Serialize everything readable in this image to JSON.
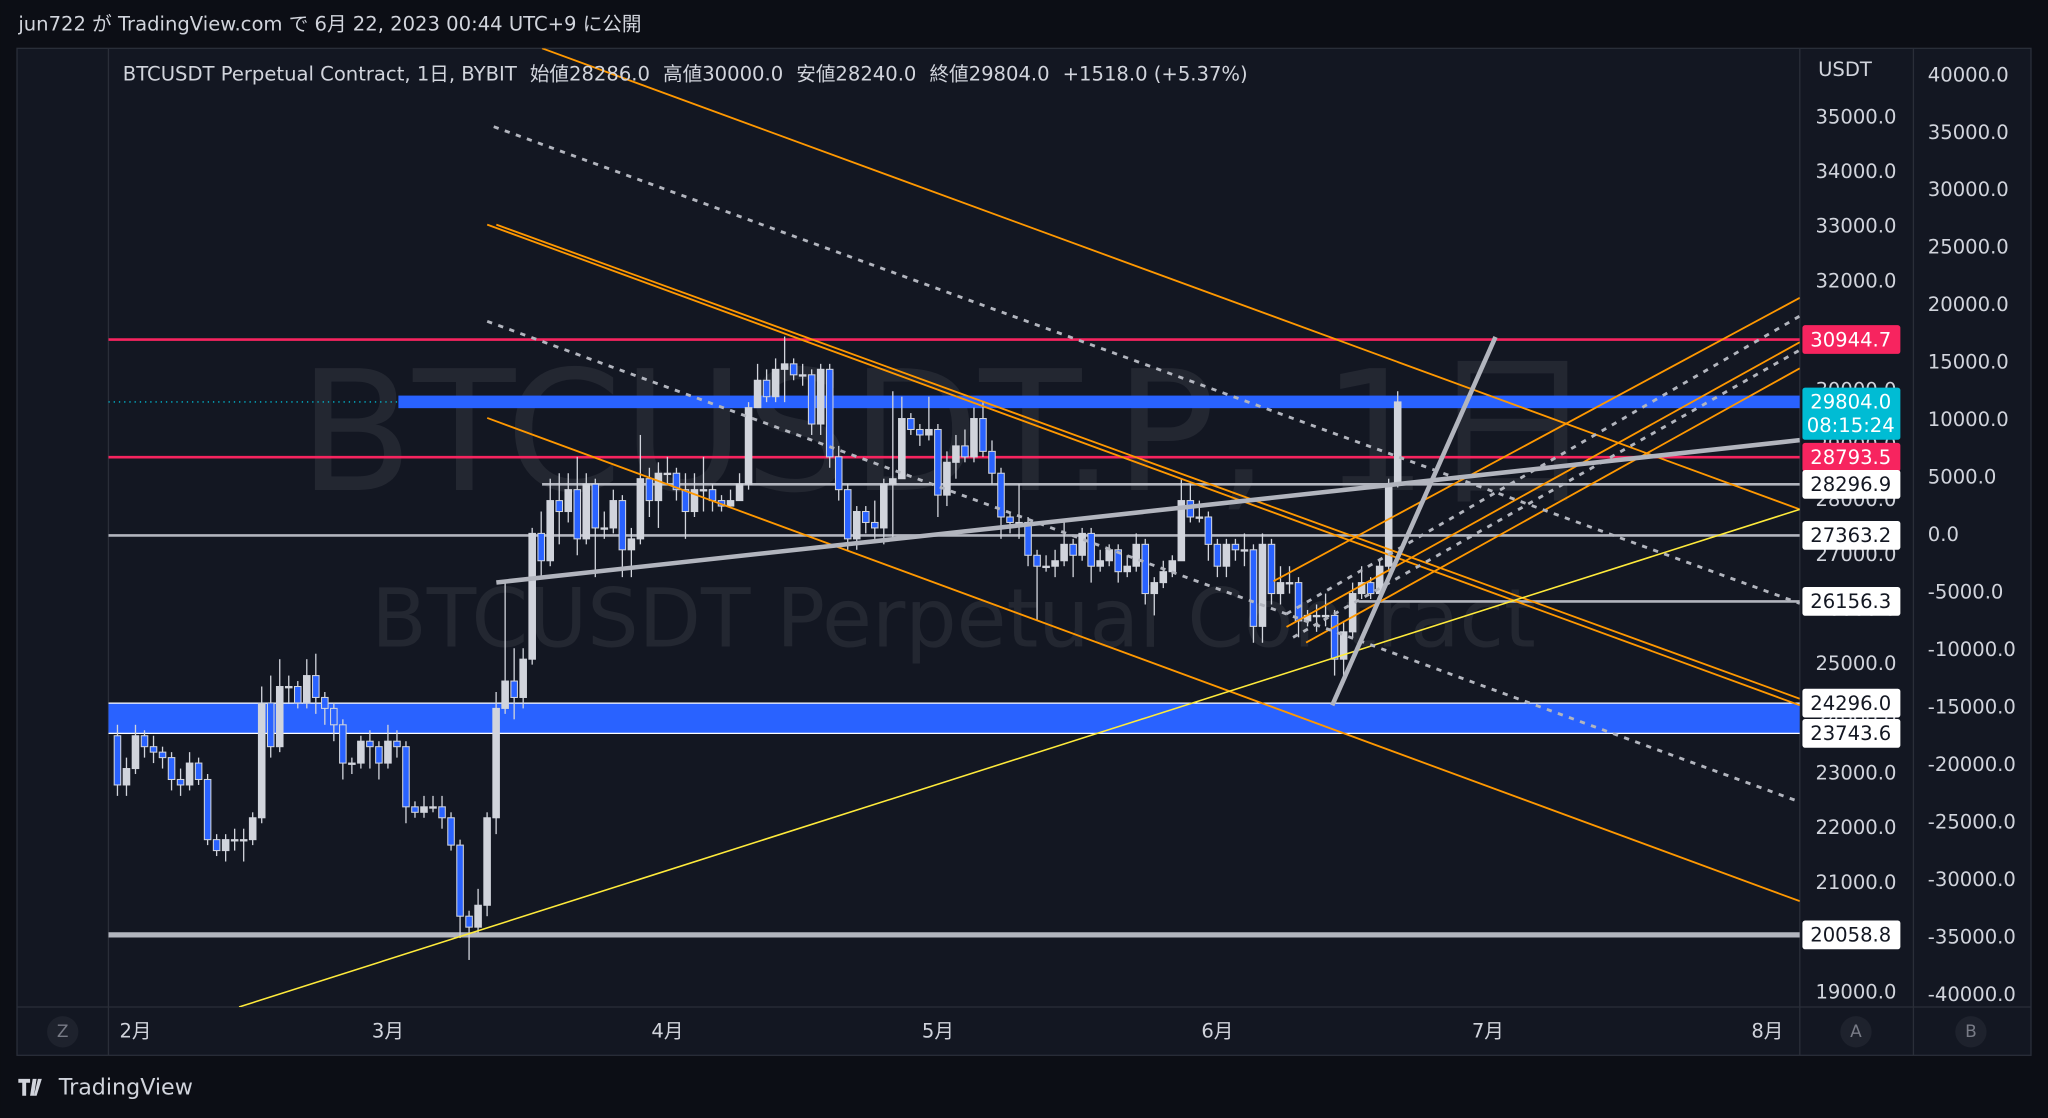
{
  "header": {
    "text": "jun722 が TradingView.com で 6月 22, 2023 00:44 UTC+9 に公開"
  },
  "footer": {
    "brand": "TradingView"
  },
  "buttons": {
    "left": "Z",
    "auto": "A",
    "log": "B"
  },
  "chart_data": {
    "type": "candlestick",
    "legend": {
      "symbol": "BTCUSDT Perpetual Contract, 1日, BYBIT",
      "open_label": "始値",
      "open": "28286.0",
      "high_label": "高値",
      "high": "30000.0",
      "low_label": "安値",
      "low": "28240.0",
      "close_label": "終値",
      "close": "29804.0",
      "change": "+1518.0 (+5.37%)"
    },
    "watermark": {
      "symbol": "BTCUSDT.P, 1日",
      "description": "BTCUSDT Perpetual Contract"
    },
    "y_axis_label": "USDT",
    "up_color": "#d1d4dc",
    "down_color": "#2962ff",
    "xlim": [
      -1,
      186.6
    ],
    "xticks": [
      {
        "value": 2,
        "label": "2月"
      },
      {
        "value": 30,
        "label": "3月"
      },
      {
        "value": 61,
        "label": "4月"
      },
      {
        "value": 91,
        "label": "5月"
      },
      {
        "value": 122,
        "label": "6月"
      },
      {
        "value": 152,
        "label": "7月"
      },
      {
        "value": 183,
        "label": "8月"
      }
    ],
    "ylim": [
      18740,
      36270
    ],
    "yticks": [
      {
        "value": 35000,
        "label": "35000.0"
      },
      {
        "value": 34000,
        "label": "34000.0"
      },
      {
        "value": 33000,
        "label": "33000.0"
      },
      {
        "value": 32000,
        "label": "32000.0"
      },
      {
        "value": 31000,
        "label": "31000.0"
      },
      {
        "value": 30000,
        "label": "30000.0"
      },
      {
        "value": 29000,
        "label": "29000.0"
      },
      {
        "value": 28000,
        "label": "28000.0"
      },
      {
        "value": 27000,
        "label": "27000.0"
      },
      {
        "value": 26000,
        "label": "26000.0"
      },
      {
        "value": 25000,
        "label": "25000.0"
      },
      {
        "value": 24000,
        "label": "24000.0"
      },
      {
        "value": 23000,
        "label": "23000.0"
      },
      {
        "value": 22000,
        "label": "22000.0"
      },
      {
        "value": 21000,
        "label": "21000.0"
      },
      {
        "value": 20000,
        "label": "20000.0"
      },
      {
        "value": 19000,
        "label": "19000.0"
      }
    ],
    "y2lim": [
      -41020,
      42390
    ],
    "y2ticks": [
      {
        "value": 40000,
        "label": "40000.0"
      },
      {
        "value": 35000,
        "label": "35000.0"
      },
      {
        "value": 30000,
        "label": "30000.0"
      },
      {
        "value": 25000,
        "label": "25000.0"
      },
      {
        "value": 20000,
        "label": "20000.0"
      },
      {
        "value": 15000,
        "label": "15000.0"
      },
      {
        "value": 10000,
        "label": "10000.0"
      },
      {
        "value": 5000,
        "label": "5000.0"
      },
      {
        "value": 0,
        "label": "0.0"
      },
      {
        "value": -5000,
        "label": "-5000.0"
      },
      {
        "value": -10000,
        "label": "-10000.0"
      },
      {
        "value": -15000,
        "label": "-15000.0"
      },
      {
        "value": -20000,
        "label": "-20000.0"
      },
      {
        "value": -25000,
        "label": "-25000.0"
      },
      {
        "value": -30000,
        "label": "-30000.0"
      },
      {
        "value": -35000,
        "label": "-35000.0"
      },
      {
        "value": -40000,
        "label": "-40000.0"
      }
    ],
    "grid": false,
    "zones": [
      {
        "top": 24296,
        "bottom": 23743.6,
        "color": "#2962ff"
      },
      {
        "top": 29920,
        "bottom": 29690,
        "color": "#2962ff"
      }
    ],
    "levels": [
      {
        "value": 30944.7,
        "color": "#f7245f",
        "label_color": "#f7245f"
      },
      {
        "value": 29804,
        "label": "29804.0",
        "countdown": "08:15:24",
        "color": "#00bcd4",
        "label_color": "#00bcd4"
      },
      {
        "value": 28793.5,
        "color": "#f7245f",
        "label_color": "#f7245f"
      },
      {
        "value": 28296.9,
        "color": "#b2b5be",
        "label_color": "#ffffff"
      },
      {
        "value": 27363.2,
        "color": "#b2b5be",
        "label_color": "#ffffff"
      },
      {
        "value": 26156.3,
        "color": "#b2b5be",
        "label_color": "#ffffff"
      },
      {
        "value": 24296,
        "label": "24296.0",
        "color": "#ffffff",
        "label_color": "#ffffff"
      },
      {
        "value": 23743.6,
        "color": "#ffffff",
        "label_color": "#ffffff"
      },
      {
        "value": 20058.8,
        "color": "#b2b5be",
        "label_color": "#ffffff"
      }
    ],
    "ohlc": [
      [
        23700,
        23900,
        22600,
        22800
      ],
      [
        22800,
        23300,
        22600,
        23100
      ],
      [
        23100,
        23900,
        23000,
        23700
      ],
      [
        23700,
        23800,
        23300,
        23500
      ],
      [
        23500,
        23700,
        23200,
        23400
      ],
      [
        23400,
        23500,
        23100,
        23300
      ],
      [
        23300,
        23400,
        22700,
        22900
      ],
      [
        22900,
        23100,
        22600,
        22800
      ],
      [
        22800,
        23400,
        22700,
        23200
      ],
      [
        23200,
        23300,
        22800,
        22900
      ],
      [
        22900,
        23000,
        21700,
        21800
      ],
      [
        21800,
        21900,
        21500,
        21600
      ],
      [
        21600,
        21900,
        21400,
        21800
      ],
      [
        21800,
        22000,
        21600,
        21800
      ],
      [
        21800,
        22000,
        21400,
        21800
      ],
      [
        21800,
        22300,
        21700,
        22200
      ],
      [
        22200,
        24600,
        22100,
        24300
      ],
      [
        24300,
        24800,
        23300,
        23500
      ],
      [
        23500,
        25100,
        23400,
        24600
      ],
      [
        24600,
        24800,
        24300,
        24600
      ],
      [
        24600,
        24700,
        24200,
        24300
      ],
      [
        24300,
        25100,
        24200,
        24800
      ],
      [
        24800,
        25200,
        24100,
        24400
      ],
      [
        24400,
        24500,
        23900,
        24200
      ],
      [
        24200,
        24300,
        23600,
        23900
      ],
      [
        23900,
        24000,
        22900,
        23200
      ],
      [
        23200,
        23300,
        23000,
        23200
      ],
      [
        23200,
        23700,
        23100,
        23600
      ],
      [
        23600,
        23800,
        23100,
        23500
      ],
      [
        23500,
        23600,
        22900,
        23200
      ],
      [
        23200,
        23900,
        23100,
        23600
      ],
      [
        23600,
        23800,
        23300,
        23500
      ],
      [
        23500,
        23600,
        22100,
        22400
      ],
      [
        22400,
        22500,
        22200,
        22300
      ],
      [
        22300,
        22600,
        22200,
        22400
      ],
      [
        22400,
        22600,
        22300,
        22400
      ],
      [
        22400,
        22600,
        22000,
        22200
      ],
      [
        22200,
        22300,
        21600,
        21700
      ],
      [
        21700,
        21800,
        20000,
        20400
      ],
      [
        20400,
        20500,
        19600,
        20200
      ],
      [
        20200,
        20900,
        20100,
        20600
      ],
      [
        20600,
        22300,
        20400,
        22200
      ],
      [
        22200,
        24500,
        21900,
        24200
      ],
      [
        24200,
        26500,
        24100,
        24700
      ],
      [
        24700,
        25300,
        24000,
        24400
      ],
      [
        24400,
        25300,
        24200,
        25100
      ],
      [
        25100,
        27500,
        25000,
        27400
      ],
      [
        27400,
        27800,
        26600,
        26900
      ],
      [
        26900,
        28400,
        26800,
        28000
      ],
      [
        28000,
        28500,
        27200,
        27800
      ],
      [
        27800,
        28500,
        27600,
        28200
      ],
      [
        28200,
        28800,
        27000,
        27300
      ],
      [
        27300,
        28500,
        27200,
        28300
      ],
      [
        28300,
        28400,
        26600,
        27500
      ],
      [
        27500,
        27800,
        27300,
        27500
      ],
      [
        27500,
        28200,
        27400,
        28000
      ],
      [
        28000,
        28100,
        26600,
        27100
      ],
      [
        27100,
        27500,
        26600,
        27300
      ],
      [
        27300,
        29200,
        27200,
        28400
      ],
      [
        28400,
        28600,
        27700,
        28000
      ],
      [
        28000,
        28700,
        27500,
        28500
      ],
      [
        28500,
        28800,
        28300,
        28500
      ],
      [
        28500,
        28600,
        28000,
        28200
      ],
      [
        28200,
        28500,
        27300,
        27800
      ],
      [
        27800,
        28500,
        27700,
        28200
      ],
      [
        28200,
        28800,
        27800,
        28200
      ],
      [
        28200,
        28300,
        27800,
        28000
      ],
      [
        28000,
        28100,
        27800,
        27900
      ],
      [
        27900,
        28200,
        27900,
        28000
      ],
      [
        28000,
        28500,
        28000,
        28300
      ],
      [
        28300,
        29800,
        28200,
        29700
      ],
      [
        29700,
        30500,
        29700,
        30200
      ],
      [
        30200,
        30400,
        29800,
        29900
      ],
      [
        29900,
        30600,
        29800,
        30400
      ],
      [
        30400,
        31000,
        29800,
        30500
      ],
      [
        30500,
        30600,
        30200,
        30300
      ],
      [
        30300,
        30500,
        30100,
        30300
      ],
      [
        30300,
        30400,
        29200,
        29400
      ],
      [
        29400,
        30500,
        29200,
        30400
      ],
      [
        30400,
        30500,
        28600,
        28800
      ],
      [
        28800,
        29000,
        28000,
        28200
      ],
      [
        28200,
        28300,
        27100,
        27300
      ],
      [
        27300,
        27900,
        27100,
        27800
      ],
      [
        27800,
        27900,
        27400,
        27600
      ],
      [
        27600,
        28000,
        27300,
        27500
      ],
      [
        27500,
        28400,
        27200,
        28300
      ],
      [
        28300,
        30000,
        27300,
        28400
      ],
      [
        28400,
        29900,
        28400,
        29500
      ],
      [
        29500,
        29600,
        29200,
        29300
      ],
      [
        29300,
        29400,
        29000,
        29200
      ],
      [
        29200,
        29900,
        29100,
        29300
      ],
      [
        29300,
        29400,
        27700,
        28100
      ],
      [
        28100,
        28900,
        27900,
        28700
      ],
      [
        28700,
        29200,
        28400,
        29000
      ],
      [
        29000,
        29300,
        28700,
        28800
      ],
      [
        28800,
        29700,
        28700,
        29500
      ],
      [
        29500,
        29800,
        28800,
        28900
      ],
      [
        28900,
        29100,
        28300,
        28500
      ],
      [
        28500,
        28600,
        27300,
        27700
      ],
      [
        27700,
        27800,
        27400,
        27600
      ],
      [
        27600,
        28300,
        27300,
        27600
      ],
      [
        27600,
        27700,
        26800,
        27000
      ],
      [
        27000,
        27100,
        25800,
        26800
      ],
      [
        26800,
        27000,
        26700,
        26800
      ],
      [
        26800,
        27100,
        26600,
        26900
      ],
      [
        26900,
        27600,
        26800,
        27200
      ],
      [
        27200,
        27300,
        26600,
        27000
      ],
      [
        27000,
        27500,
        26900,
        27400
      ],
      [
        27400,
        27500,
        26500,
        26800
      ],
      [
        26800,
        27100,
        26700,
        26900
      ],
      [
        26900,
        27200,
        26800,
        27100
      ],
      [
        27100,
        27200,
        26500,
        26700
      ],
      [
        26700,
        27000,
        26600,
        26800
      ],
      [
        26800,
        27400,
        26700,
        27200
      ],
      [
        27200,
        27300,
        26100,
        26300
      ],
      [
        26300,
        26600,
        25900,
        26500
      ],
      [
        26500,
        26900,
        26400,
        26700
      ],
      [
        26700,
        27000,
        26600,
        26900
      ],
      [
        26900,
        28400,
        26900,
        28000
      ],
      [
        28000,
        28300,
        27600,
        27700
      ],
      [
        27700,
        28000,
        27600,
        27700
      ],
      [
        27700,
        27800,
        26900,
        27200
      ],
      [
        27200,
        27300,
        26600,
        26800
      ],
      [
        26800,
        27300,
        26600,
        27200
      ],
      [
        27200,
        27300,
        26900,
        27100
      ],
      [
        27100,
        27400,
        26800,
        27100
      ],
      [
        27100,
        27200,
        25400,
        25700
      ],
      [
        25700,
        27400,
        25400,
        27200
      ],
      [
        27200,
        27300,
        26100,
        26300
      ],
      [
        26300,
        26800,
        26100,
        26500
      ],
      [
        26500,
        26800,
        26300,
        26500
      ],
      [
        26500,
        26600,
        25500,
        25800
      ],
      [
        25800,
        26000,
        25700,
        25900
      ],
      [
        25900,
        26100,
        25600,
        25900
      ],
      [
        25900,
        26300,
        25700,
        25900
      ],
      [
        25900,
        26000,
        24800,
        25100
      ],
      [
        25100,
        25800,
        24800,
        25600
      ],
      [
        25600,
        26500,
        25500,
        26300
      ],
      [
        26300,
        26800,
        26200,
        26500
      ],
      [
        26500,
        26600,
        26200,
        26300
      ],
      [
        26300,
        26900,
        26200,
        26800
      ],
      [
        26800,
        28400,
        26700,
        28286
      ],
      [
        28286,
        30000,
        28240,
        29804
      ]
    ]
  }
}
